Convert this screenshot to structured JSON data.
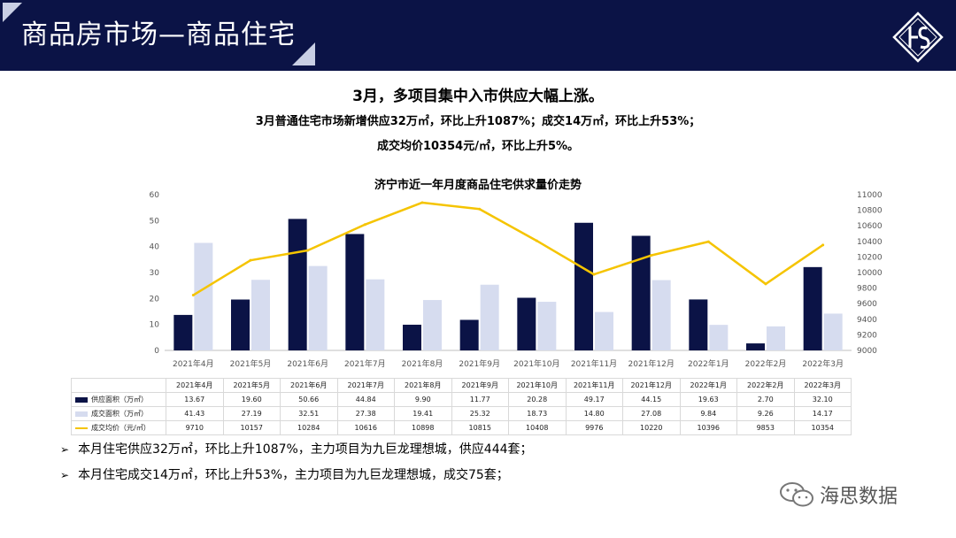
{
  "header": {
    "title": "商品房市场—商品住宅"
  },
  "headline": {
    "line1": "3月，多项目集中入市供应大幅上涨。",
    "line2": "3月普通住宅市场新增供应32万㎡，环比上升1087%；成交14万㎡，环比上升53%；",
    "line3": "成交均价10354元/㎡，环比上升5%。"
  },
  "chart_data": {
    "type": "bar",
    "title": "济宁市近一年月度商品住宅供求量价走势",
    "categories": [
      "2021年4月",
      "2021年5月",
      "2021年6月",
      "2021年7月",
      "2021年8月",
      "2021年9月",
      "2021年10月",
      "2021年11月",
      "2021年12月",
      "2022年1月",
      "2022年2月",
      "2022年3月"
    ],
    "series": [
      {
        "name": "供应面积（万㎡）",
        "type": "bar",
        "axis": "left",
        "color": "#0b1346",
        "values": [
          13.67,
          19.6,
          50.66,
          44.84,
          9.9,
          11.77,
          20.28,
          49.17,
          44.15,
          19.63,
          2.7,
          32.1
        ],
        "labels": [
          "13.67",
          "19.60",
          "50.66",
          "44.84",
          "9.90",
          "11.77",
          "20.28",
          "49.17",
          "44.15",
          "19.63",
          "2.70",
          "32.10"
        ]
      },
      {
        "name": "成交面积（万㎡）",
        "type": "bar",
        "axis": "left",
        "color": "#d6dcef",
        "values": [
          41.43,
          27.19,
          32.51,
          27.38,
          19.41,
          25.32,
          18.73,
          14.8,
          27.08,
          9.84,
          9.26,
          14.17
        ],
        "labels": [
          "41.43",
          "27.19",
          "32.51",
          "27.38",
          "19.41",
          "25.32",
          "18.73",
          "14.80",
          "27.08",
          "9.84",
          "9.26",
          "14.17"
        ]
      },
      {
        "name": "成交均价（元/㎡）",
        "type": "line",
        "axis": "right",
        "color": "#f5c400",
        "values": [
          9710,
          10157,
          10284,
          10616,
          10898,
          10815,
          10408,
          9976,
          10220,
          10396,
          9853,
          10354
        ],
        "labels": [
          "9710",
          "10157",
          "10284",
          "10616",
          "10898",
          "10815",
          "10408",
          "9976",
          "10220",
          "10396",
          "9853",
          "10354"
        ]
      }
    ],
    "y_left": {
      "min": 0,
      "max": 60,
      "ticks": [
        "0",
        "10",
        "20",
        "30",
        "40",
        "50",
        "60"
      ]
    },
    "y_right": {
      "min": 9000,
      "max": 11000,
      "ticks": [
        "9000",
        "9200",
        "9400",
        "9600",
        "9800",
        "10000",
        "10200",
        "10400",
        "10600",
        "10800",
        "11000"
      ]
    },
    "legend": "bottom data table",
    "grid": false
  },
  "bullets": [
    {
      "symbol": "➢",
      "text": "本月住宅供应32万㎡，环比上升1087%，主力项目为九巨龙理想城，供应444套；"
    },
    {
      "symbol": "➢",
      "text": "本月住宅成交14万㎡，环比上升53%，主力项目为九巨龙理想城，成交75套；"
    }
  ],
  "watermark": {
    "text": "海思数据"
  },
  "colors": {
    "navy": "#0b1346",
    "light_bar": "#d6dcef",
    "line": "#f5c400"
  }
}
